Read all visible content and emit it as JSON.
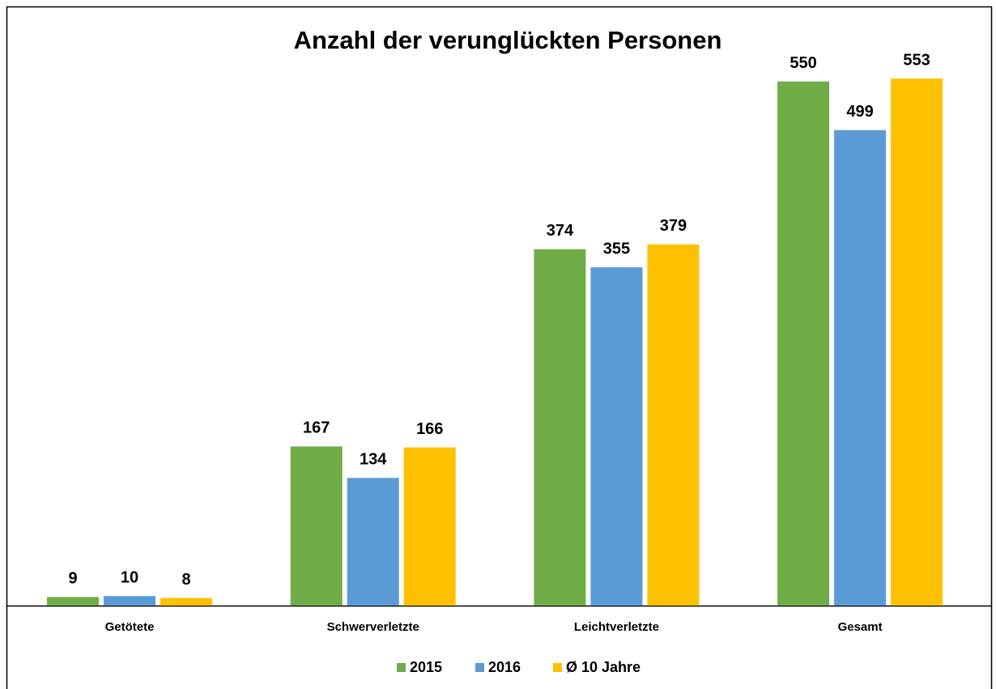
{
  "chart_data": {
    "type": "bar",
    "title": "Anzahl der verunglückten Personen",
    "categories": [
      "Getötete",
      "Schwerverletzte",
      "Leichtverletzte",
      "Gesamt"
    ],
    "series": [
      {
        "name": "2015",
        "color": "#70ad47",
        "values": [
          9,
          167,
          374,
          550
        ]
      },
      {
        "name": "2016",
        "color": "#5b9bd5",
        "values": [
          10,
          134,
          355,
          499
        ]
      },
      {
        "name": "Ø 10 Jahre",
        "color": "#ffc000",
        "values": [
          8,
          166,
          379,
          553
        ]
      }
    ],
    "legend": "bottom"
  }
}
